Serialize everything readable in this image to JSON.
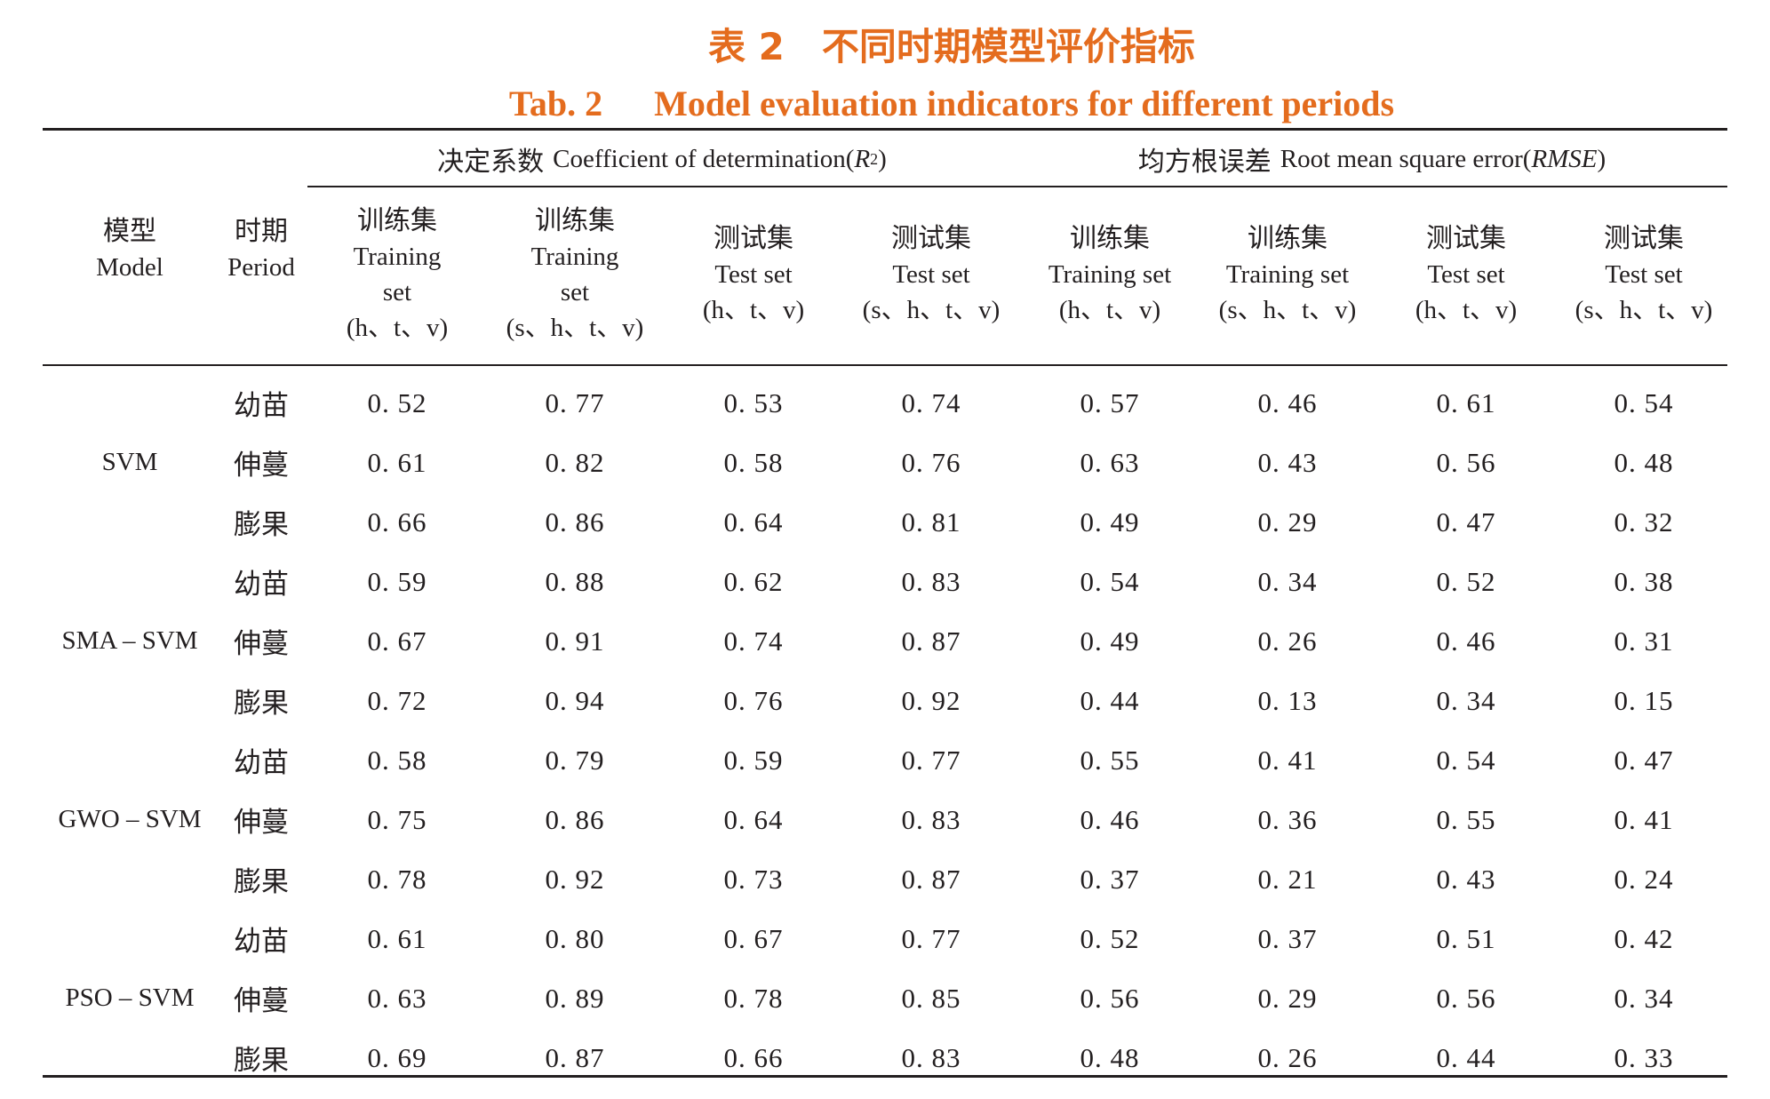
{
  "caption": {
    "cn_label": "表 2",
    "cn_title": "不同时期模型评价指标",
    "en_label": "Tab. 2",
    "en_title": "Model evaluation indicators for different periods"
  },
  "header": {
    "model_cn": "模型",
    "model_en": "Model",
    "period_cn": "时期",
    "period_en": "Period",
    "group_r2_cn": "决定系数",
    "group_r2_en": "Coefficient of determination(",
    "group_r2_sym": "R",
    "group_r2_sup": "2",
    "group_r2_close": ")",
    "group_rmse_cn": "均方根误差",
    "group_rmse_en": "Root mean square error(",
    "group_rmse_sym": "RMSE",
    "group_rmse_close": ")",
    "columns": [
      {
        "cn": "训练集",
        "en": [
          "Training",
          "set"
        ],
        "vars": "(h、t、v)"
      },
      {
        "cn": "训练集",
        "en": [
          "Training",
          "set"
        ],
        "vars": "(s、h、t、v)"
      },
      {
        "cn": "测试集",
        "en": [
          "Test set"
        ],
        "vars": "(h、t、v)"
      },
      {
        "cn": "测试集",
        "en": [
          "Test set"
        ],
        "vars": "(s、h、t、v)"
      },
      {
        "cn": "训练集",
        "en": [
          "Training set"
        ],
        "vars": "(h、t、v)"
      },
      {
        "cn": "训练集",
        "en": [
          "Training set"
        ],
        "vars": "(s、h、t、v)"
      },
      {
        "cn": "测试集",
        "en": [
          "Test set"
        ],
        "vars": "(h、t、v)"
      },
      {
        "cn": "测试集",
        "en": [
          "Test set"
        ],
        "vars": "(s、h、t、v)"
      }
    ]
  },
  "groups": [
    {
      "model": "SVM",
      "rows": [
        {
          "period": "幼苗",
          "values": [
            "0. 52",
            "0. 77",
            "0. 53",
            "0. 74",
            "0. 57",
            "0. 46",
            "0. 61",
            "0. 54"
          ]
        },
        {
          "period": "伸蔓",
          "values": [
            "0. 61",
            "0. 82",
            "0. 58",
            "0. 76",
            "0. 63",
            "0. 43",
            "0. 56",
            "0. 48"
          ]
        },
        {
          "period": "膨果",
          "values": [
            "0. 66",
            "0. 86",
            "0. 64",
            "0. 81",
            "0. 49",
            "0. 29",
            "0. 47",
            "0. 32"
          ]
        }
      ]
    },
    {
      "model": "SMA – SVM",
      "rows": [
        {
          "period": "幼苗",
          "values": [
            "0. 59",
            "0. 88",
            "0. 62",
            "0. 83",
            "0. 54",
            "0. 34",
            "0. 52",
            "0. 38"
          ]
        },
        {
          "period": "伸蔓",
          "values": [
            "0. 67",
            "0. 91",
            "0. 74",
            "0. 87",
            "0. 49",
            "0. 26",
            "0. 46",
            "0. 31"
          ]
        },
        {
          "period": "膨果",
          "values": [
            "0. 72",
            "0. 94",
            "0. 76",
            "0. 92",
            "0. 44",
            "0. 13",
            "0. 34",
            "0. 15"
          ]
        }
      ]
    },
    {
      "model": "GWO – SVM",
      "rows": [
        {
          "period": "幼苗",
          "values": [
            "0. 58",
            "0. 79",
            "0. 59",
            "0. 77",
            "0. 55",
            "0. 41",
            "0. 54",
            "0. 47"
          ]
        },
        {
          "period": "伸蔓",
          "values": [
            "0. 75",
            "0. 86",
            "0. 64",
            "0. 83",
            "0. 46",
            "0. 36",
            "0. 55",
            "0. 41"
          ]
        },
        {
          "period": "膨果",
          "values": [
            "0. 78",
            "0. 92",
            "0. 73",
            "0. 87",
            "0. 37",
            "0. 21",
            "0. 43",
            "0. 24"
          ]
        }
      ]
    },
    {
      "model": "PSO – SVM",
      "rows": [
        {
          "period": "幼苗",
          "values": [
            "0. 61",
            "0. 80",
            "0. 67",
            "0. 77",
            "0. 52",
            "0. 37",
            "0. 51",
            "0. 42"
          ]
        },
        {
          "period": "伸蔓",
          "values": [
            "0. 63",
            "0. 89",
            "0. 78",
            "0. 85",
            "0. 56",
            "0. 29",
            "0. 56",
            "0. 34"
          ]
        },
        {
          "period": "膨果",
          "values": [
            "0. 69",
            "0. 87",
            "0. 66",
            "0. 83",
            "0. 48",
            "0. 26",
            "0. 44",
            "0. 33"
          ]
        }
      ]
    }
  ]
}
